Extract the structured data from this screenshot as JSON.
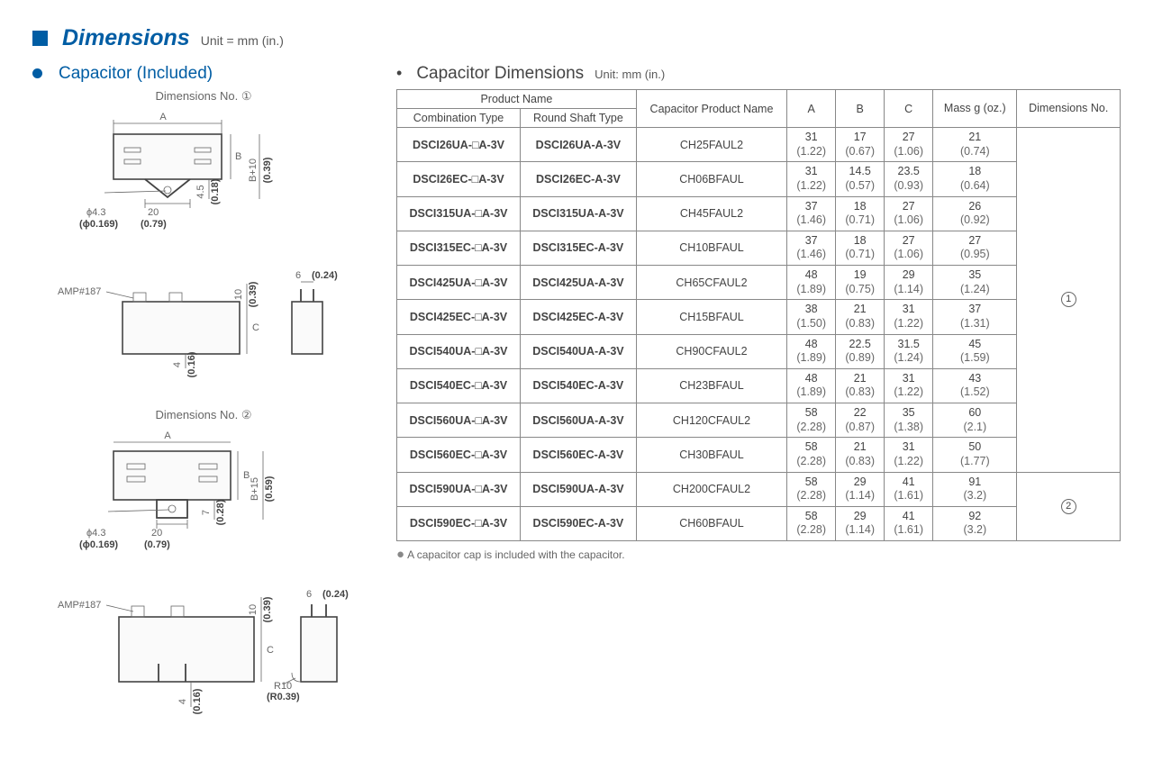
{
  "header": {
    "title": "Dimensions",
    "unit": "Unit = mm (in.)"
  },
  "left": {
    "subtitle": "Capacitor (Included)",
    "cap1": "Dimensions No. ①",
    "cap2": "Dimensions No. ②",
    "labels": {
      "A": "A",
      "B": "B",
      "C": "C",
      "phi": "ϕ4.3",
      "phi_in": "(ϕ0.169)",
      "d20": "20",
      "d20_in": "(0.79)",
      "d45": "4.5",
      "d45_in": "(0.18)",
      "bp10": "B+10",
      "bp10_in": "(0.39)",
      "d10": "10",
      "d10_in": "(0.39)",
      "d6": "6",
      "d6_in": "(0.24)",
      "d4": "4",
      "d4_in": "(0.16)",
      "amp": "AMP#187",
      "d7": "7",
      "d7_in": "(0.28)",
      "bp15": "B+15",
      "bp15_in": "(0.59)",
      "r10": "R10",
      "r10_in": "(R0.39)"
    }
  },
  "right": {
    "subtitle": "Capacitor Dimensions",
    "unit": "Unit: mm (in.)",
    "thead": {
      "pn": "Product Name",
      "comb": "Combination Type",
      "round": "Round Shaft Type",
      "capname": "Capacitor Product Name",
      "A": "A",
      "B": "B",
      "C": "C",
      "mass": "Mass g (oz.)",
      "dimno": "Dimensions No."
    },
    "rows": [
      {
        "comb": "DSCI26UA-□A-3V",
        "round": "DSCI26UA-A-3V",
        "cap": "CH25FAUL2",
        "A": "31",
        "Ai": "(1.22)",
        "B": "17",
        "Bi": "(0.67)",
        "C": "27",
        "Ci": "(1.06)",
        "M": "21",
        "Mi": "(0.74)"
      },
      {
        "comb": "DSCI26EC-□A-3V",
        "round": "DSCI26EC-A-3V",
        "cap": "CH06BFAUL",
        "A": "31",
        "Ai": "(1.22)",
        "B": "14.5",
        "Bi": "(0.57)",
        "C": "23.5",
        "Ci": "(0.93)",
        "M": "18",
        "Mi": "(0.64)"
      },
      {
        "comb": "DSCI315UA-□A-3V",
        "round": "DSCI315UA-A-3V",
        "cap": "CH45FAUL2",
        "A": "37",
        "Ai": "(1.46)",
        "B": "18",
        "Bi": "(0.71)",
        "C": "27",
        "Ci": "(1.06)",
        "M": "26",
        "Mi": "(0.92)"
      },
      {
        "comb": "DSCI315EC-□A-3V",
        "round": "DSCI315EC-A-3V",
        "cap": "CH10BFAUL",
        "A": "37",
        "Ai": "(1.46)",
        "B": "18",
        "Bi": "(0.71)",
        "C": "27",
        "Ci": "(1.06)",
        "M": "27",
        "Mi": "(0.95)"
      },
      {
        "comb": "DSCI425UA-□A-3V",
        "round": "DSCI425UA-A-3V",
        "cap": "CH65CFAUL2",
        "A": "48",
        "Ai": "(1.89)",
        "B": "19",
        "Bi": "(0.75)",
        "C": "29",
        "Ci": "(1.14)",
        "M": "35",
        "Mi": "(1.24)"
      },
      {
        "comb": "DSCI425EC-□A-3V",
        "round": "DSCI425EC-A-3V",
        "cap": "CH15BFAUL",
        "A": "38",
        "Ai": "(1.50)",
        "B": "21",
        "Bi": "(0.83)",
        "C": "31",
        "Ci": "(1.22)",
        "M": "37",
        "Mi": "(1.31)"
      },
      {
        "comb": "DSCI540UA-□A-3V",
        "round": "DSCI540UA-A-3V",
        "cap": "CH90CFAUL2",
        "A": "48",
        "Ai": "(1.89)",
        "B": "22.5",
        "Bi": "(0.89)",
        "C": "31.5",
        "Ci": "(1.24)",
        "M": "45",
        "Mi": "(1.59)"
      },
      {
        "comb": "DSCI540EC-□A-3V",
        "round": "DSCI540EC-A-3V",
        "cap": "CH23BFAUL",
        "A": "48",
        "Ai": "(1.89)",
        "B": "21",
        "Bi": "(0.83)",
        "C": "31",
        "Ci": "(1.22)",
        "M": "43",
        "Mi": "(1.52)"
      },
      {
        "comb": "DSCI560UA-□A-3V",
        "round": "DSCI560UA-A-3V",
        "cap": "CH120CFAUL2",
        "A": "58",
        "Ai": "(2.28)",
        "B": "22",
        "Bi": "(0.87)",
        "C": "35",
        "Ci": "(1.38)",
        "M": "60",
        "Mi": "(2.1)"
      },
      {
        "comb": "DSCI560EC-□A-3V",
        "round": "DSCI560EC-A-3V",
        "cap": "CH30BFAUL",
        "A": "58",
        "Ai": "(2.28)",
        "B": "21",
        "Bi": "(0.83)",
        "C": "31",
        "Ci": "(1.22)",
        "M": "50",
        "Mi": "(1.77)"
      },
      {
        "comb": "DSCI590UA-□A-3V",
        "round": "DSCI590UA-A-3V",
        "cap": "CH200CFAUL2",
        "A": "58",
        "Ai": "(2.28)",
        "B": "29",
        "Bi": "(1.14)",
        "C": "41",
        "Ci": "(1.61)",
        "M": "91",
        "Mi": "(3.2)"
      },
      {
        "comb": "DSCI590EC-□A-3V",
        "round": "DSCI590EC-A-3V",
        "cap": "CH60BFAUL",
        "A": "58",
        "Ai": "(2.28)",
        "B": "29",
        "Bi": "(1.14)",
        "C": "41",
        "Ci": "(1.61)",
        "M": "92",
        "Mi": "(3.2)"
      }
    ],
    "dimno1": "①",
    "dimno2": "②",
    "footnote": "A capacitor cap is included with the capacitor."
  }
}
